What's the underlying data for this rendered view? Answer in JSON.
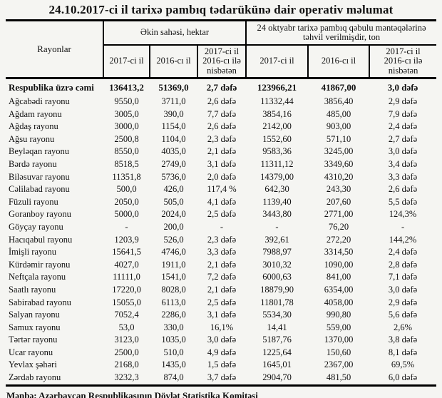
{
  "title": "24.10.2017-ci il tarixə pambıq tədarükünə dair operativ məlumat",
  "table": {
    "header": {
      "rayonlar": "Rayonlar",
      "group1": "Əkin sahəsi, hektar",
      "group2": "24 oktyabr tarixə pambıq qəbulu məntəqələrinə təhvil verilmişdir, ton",
      "sub": [
        "2017-ci il",
        "2016-cı il",
        "2017-ci il\n2016-cı ilə\nnisbətən",
        "2017-ci il",
        "2016-cı il",
        "2017-ci il\n2016-cı ilə\nnisbətən"
      ]
    },
    "rows": [
      {
        "name": "Respublika üzrə cəmi",
        "bold": true,
        "cells": [
          "136413,2",
          "51369,0",
          "2,7 dəfə",
          "123966,21",
          "41867,00",
          "3,0 dəfə"
        ]
      },
      {
        "name": "Ağcabədi rayonu",
        "bold": false,
        "cells": [
          "9550,0",
          "3711,0",
          "2,6 dəfə",
          "11332,44",
          "3856,40",
          "2,9 dəfə"
        ]
      },
      {
        "name": "Ağdam rayonu",
        "bold": false,
        "cells": [
          "3005,0",
          "390,0",
          "7,7 dəfə",
          "3854,16",
          "485,00",
          "7,9 dəfə"
        ]
      },
      {
        "name": "Ağdaş rayonu",
        "bold": false,
        "cells": [
          "3000,0",
          "1154,0",
          "2,6 dəfə",
          "2142,00",
          "903,00",
          "2,4 dəfə"
        ]
      },
      {
        "name": "Ağsu rayonu",
        "bold": false,
        "cells": [
          "2500,8",
          "1104,0",
          "2,3 dəfə",
          "1552,60",
          "571,10",
          "2,7 dəfə"
        ]
      },
      {
        "name": "Beyləqan rayonu",
        "bold": false,
        "cells": [
          "8550,0",
          "4035,0",
          "2,1 dəfə",
          "9583,36",
          "3245,00",
          "3,0 dəfə"
        ]
      },
      {
        "name": "Bərdə rayonu",
        "bold": false,
        "cells": [
          "8518,5",
          "2749,0",
          "3,1 dəfə",
          "11311,12",
          "3349,60",
          "3,4 dəfə"
        ]
      },
      {
        "name": "Biləsuvar rayonu",
        "bold": false,
        "cells": [
          "11351,8",
          "5736,0",
          "2,0 dəfə",
          "14379,00",
          "4310,20",
          "3,3 dəfə"
        ]
      },
      {
        "name": "Cəlilabad rayonu",
        "bold": false,
        "cells": [
          "500,0",
          "426,0",
          "117,4 %",
          "642,30",
          "243,30",
          "2,6 dəfə"
        ]
      },
      {
        "name": "Füzuli rayonu",
        "bold": false,
        "cells": [
          "2050,0",
          "505,0",
          "4,1 dəfə",
          "1139,40",
          "207,60",
          "5,5 dəfə"
        ]
      },
      {
        "name": "Goranboy rayonu",
        "bold": false,
        "cells": [
          "5000,0",
          "2024,0",
          "2,5 dəfə",
          "3443,80",
          "2771,00",
          "124,3%"
        ]
      },
      {
        "name": "Göyçay rayonu",
        "bold": false,
        "cells": [
          "-",
          "200,0",
          "-",
          "-",
          "76,20",
          "-"
        ]
      },
      {
        "name": "Hacıqabul rayonu",
        "bold": false,
        "cells": [
          "1203,9",
          "526,0",
          "2,3 dəfə",
          "392,61",
          "272,20",
          "144,2%"
        ]
      },
      {
        "name": "İmişli rayonu",
        "bold": false,
        "cells": [
          "15641,5",
          "4746,0",
          "3,3 dəfə",
          "7988,97",
          "3314,50",
          "2,4 dəfə"
        ]
      },
      {
        "name": "Kürdəmir rayonu",
        "bold": false,
        "cells": [
          "4027,0",
          "1911,0",
          "2,1 dəfə",
          "3010,32",
          "1090,00",
          "2,8 dəfə"
        ]
      },
      {
        "name": "Neftçala rayonu",
        "bold": false,
        "cells": [
          "11111,0",
          "1541,0",
          "7,2 dəfə",
          "6000,63",
          "841,00",
          "7,1 dəfə"
        ]
      },
      {
        "name": "Saatlı rayonu",
        "bold": false,
        "cells": [
          "17220,0",
          "8028,0",
          "2,1 dəfə",
          "18879,90",
          "6354,00",
          "3,0 dəfə"
        ]
      },
      {
        "name": "Sabirabad rayonu",
        "bold": false,
        "cells": [
          "15055,0",
          "6113,0",
          "2,5 dəfə",
          "11801,78",
          "4058,00",
          "2,9 dəfə"
        ]
      },
      {
        "name": "Salyan rayonu",
        "bold": false,
        "cells": [
          "7052,4",
          "2286,0",
          "3,1 dəfə",
          "5534,30",
          "990,80",
          "5,6 dəfə"
        ]
      },
      {
        "name": "Samux rayonu",
        "bold": false,
        "cells": [
          "53,0",
          "330,0",
          "16,1%",
          "14,41",
          "559,00",
          "2,6%"
        ]
      },
      {
        "name": "Tərtər rayonu",
        "bold": false,
        "cells": [
          "3123,0",
          "1035,0",
          "3,0 dəfə",
          "5187,76",
          "1370,00",
          "3,8 dəfə"
        ]
      },
      {
        "name": "Ucar rayonu",
        "bold": false,
        "cells": [
          "2500,0",
          "510,0",
          "4,9 dəfə",
          "1225,64",
          "150,60",
          "8,1 dəfə"
        ]
      },
      {
        "name": "Yevlax şəhəri",
        "bold": false,
        "cells": [
          "2168,0",
          "1435,0",
          "1,5 dəfə",
          "1645,01",
          "2367,00",
          "69,5%"
        ]
      },
      {
        "name": "Zərdab rayonu",
        "bold": false,
        "cells": [
          "3232,3",
          "874,0",
          "3,7 dəfə",
          "2904,70",
          "481,50",
          "6,0 dəfə"
        ]
      }
    ]
  },
  "footer": "Mənbə: Azərbaycan Respublikasının Dövlət Statistika Komitəsi"
}
